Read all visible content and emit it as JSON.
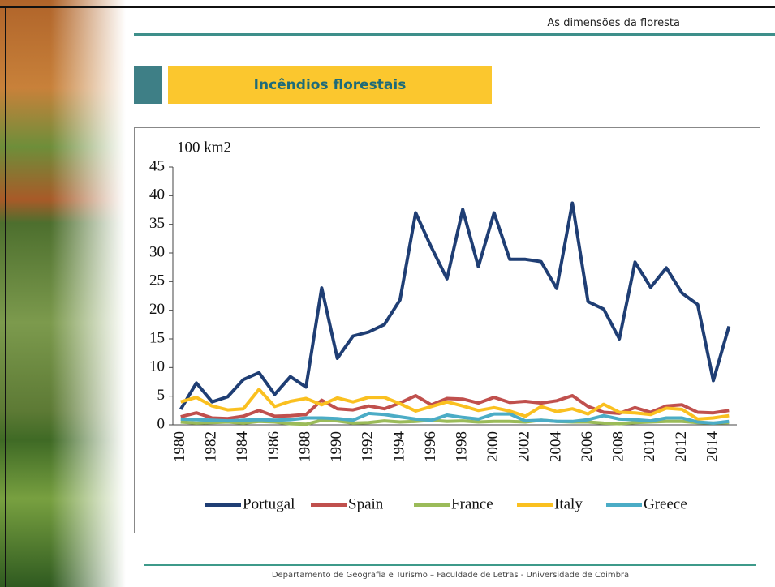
{
  "header": "As dimensões da floresta",
  "slide_title": "Incêndios florestais",
  "footer": "Departamento de Geografia e Turismo – Faculdade de Letras -  Universidade de Coimbra",
  "chart_data": {
    "type": "line",
    "y_label": "100 km2",
    "categories": [
      "1980",
      null,
      "1982",
      null,
      "1984",
      null,
      "1986",
      null,
      "1988",
      null,
      "1990",
      null,
      "1992",
      null,
      "1994",
      null,
      "1996",
      null,
      "1998",
      null,
      "2000",
      null,
      "2002",
      null,
      "2004",
      null,
      "2006",
      null,
      "2008",
      null,
      "2010",
      null,
      "2012",
      null,
      "2014",
      null
    ],
    "ylim": [
      0,
      45
    ],
    "yticks": [
      0,
      5,
      10,
      15,
      20,
      25,
      30,
      35,
      40,
      45
    ],
    "legend": "bottom",
    "series": [
      {
        "name": "Portugal",
        "color": "#1f3e74",
        "values": [
          2.7,
          7.3,
          4.0,
          4.9,
          7.9,
          9.1,
          5.3,
          8.4,
          6.6,
          23.9,
          11.6,
          15.5,
          16.2,
          17.5,
          21.8,
          37.0,
          31.0,
          25.5,
          37.6,
          27.6,
          37.0,
          28.9,
          28.9,
          28.5,
          23.8,
          38.7,
          21.5,
          20.2,
          15.0,
          28.4,
          24.0,
          27.4,
          23.0,
          21.0,
          7.7,
          17.2
        ]
      },
      {
        "name": "Spain",
        "color": "#c0504d",
        "values": [
          1.4,
          2.1,
          1.2,
          1.1,
          1.5,
          2.5,
          1.5,
          1.6,
          1.8,
          4.3,
          2.8,
          2.6,
          3.3,
          2.8,
          3.8,
          5.1,
          3.5,
          4.6,
          4.5,
          3.8,
          4.8,
          3.9,
          4.1,
          3.8,
          4.2,
          5.1,
          3.2,
          2.2,
          2.0,
          3.0,
          2.2,
          3.3,
          3.5,
          2.2,
          2.1,
          2.5
        ]
      },
      {
        "name": "France",
        "color": "#9bbb59",
        "values": [
          0.5,
          0.3,
          0.4,
          0.5,
          0.3,
          0.6,
          0.5,
          0.2,
          0.1,
          0.8,
          0.7,
          0.3,
          0.4,
          0.7,
          0.5,
          0.6,
          0.8,
          0.6,
          0.7,
          0.5,
          0.6,
          0.6,
          0.5,
          0.8,
          0.6,
          0.5,
          0.5,
          0.3,
          0.2,
          0.4,
          0.5,
          0.6,
          0.6,
          0.4,
          0.3,
          0.4
        ]
      },
      {
        "name": "Italy",
        "color": "#fac020",
        "values": [
          4.0,
          4.8,
          3.3,
          2.6,
          2.8,
          6.2,
          3.2,
          4.1,
          4.6,
          3.5,
          4.7,
          4.0,
          4.8,
          4.8,
          3.7,
          2.4,
          3.2,
          4.0,
          3.3,
          2.5,
          3.0,
          2.4,
          1.5,
          3.2,
          2.3,
          2.8,
          1.9,
          3.6,
          2.2,
          2.1,
          1.8,
          2.9,
          2.7,
          1.0,
          1.2,
          1.6
        ]
      },
      {
        "name": "Greece",
        "color": "#4bacc6",
        "values": [
          1.0,
          0.9,
          0.8,
          0.7,
          0.8,
          0.9,
          0.8,
          0.9,
          1.2,
          1.2,
          1.1,
          0.8,
          2.0,
          1.8,
          1.4,
          1.0,
          0.8,
          1.7,
          1.3,
          1.0,
          1.9,
          1.9,
          0.7,
          0.8,
          0.6,
          0.6,
          0.9,
          1.6,
          1.0,
          0.9,
          0.7,
          1.2,
          1.2,
          0.5,
          0.3,
          0.6
        ]
      }
    ]
  }
}
